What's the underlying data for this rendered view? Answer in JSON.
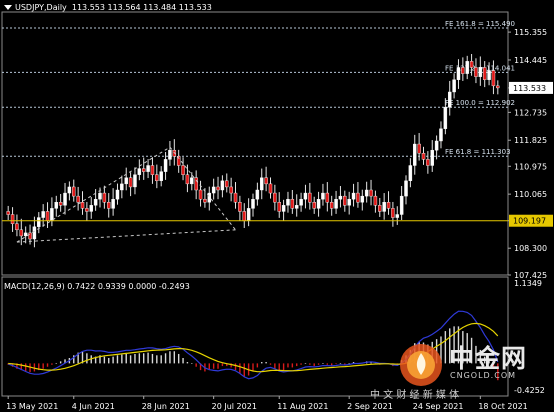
{
  "window": {
    "symbol_tf": "USDJPY,Daily",
    "ohlc": "113.553 113.564 113.484 113.533",
    "menu_icon": "triangle-down-icon"
  },
  "macd": {
    "label": "MACD(12,26,9) 0.7422 0.9339 0.0000 -0.2493",
    "axis_top": "1.1349",
    "axis_bottom": "-0.4252",
    "signal_color": "#e6d400",
    "macd_line_color": "#2f3ad8",
    "histogram_color_up": "#d8d8d8",
    "histogram_color_down": "#d81b1b"
  },
  "watermark": {
    "brand_cn": "中金网",
    "brand_en": "CNGOLD.COM",
    "tagline": "中 文 财 经 新 媒 体",
    "logo_icon": "coin-flame-logo-icon"
  },
  "chart_data": [
    {
      "type": "candlestick",
      "title": "USDJPY,Daily",
      "y_ticks": [
        "115.355",
        "114.445",
        "113.533",
        "112.735",
        "111.825",
        "110.975",
        "110.065",
        "109.197",
        "108.300",
        "107.425"
      ],
      "ylim": [
        107.425,
        115.75
      ],
      "x_ticks": [
        "13 May 2021",
        "4 Jun 2021",
        "28 Jun 2021",
        "20 Jul 2021",
        "11 Aug 2021",
        "2 Sep 2021",
        "24 Sep 2021",
        "18 Oct 2021"
      ],
      "current_price": "113.533",
      "horizontal_line": {
        "value": 109.197,
        "label": "109.197",
        "color": "#e6c800"
      },
      "fibonacci_levels": [
        {
          "label": "FE 161.8 = 115.490",
          "value": 115.49
        },
        {
          "label": "FE 127.2 = 114.041",
          "value": 114.041
        },
        {
          "label": "FE 100.0 = 112.902",
          "value": 112.902
        },
        {
          "label": "FE 61.8 = 111.303",
          "value": 111.303
        }
      ],
      "closes": [
        109.4,
        109.1,
        108.9,
        108.7,
        108.8,
        108.6,
        109.0,
        109.3,
        109.5,
        109.2,
        109.6,
        109.8,
        109.7,
        110.1,
        110.3,
        110.0,
        109.8,
        109.6,
        109.5,
        109.7,
        109.9,
        110.1,
        109.8,
        109.6,
        109.9,
        110.2,
        110.4,
        110.6,
        110.3,
        110.7,
        110.9,
        110.8,
        111.0,
        110.7,
        110.5,
        110.8,
        111.2,
        111.5,
        111.3,
        111.0,
        110.7,
        110.4,
        110.6,
        110.2,
        109.9,
        109.8,
        110.1,
        110.3,
        110.2,
        110.5,
        110.3,
        110.1,
        109.8,
        109.5,
        109.2,
        109.6,
        109.9,
        110.2,
        110.6,
        110.4,
        110.1,
        109.8,
        109.5,
        109.7,
        109.9,
        109.6,
        109.7,
        109.9,
        110.1,
        109.8,
        109.6,
        109.9,
        110.1,
        109.8,
        109.6,
        109.9,
        110.0,
        109.7,
        109.9,
        110.1,
        109.8,
        110.0,
        110.2,
        110.0,
        109.7,
        109.5,
        109.8,
        109.6,
        109.3,
        109.4,
        110.0,
        110.5,
        111.0,
        111.7,
        111.4,
        111.2,
        111.0,
        111.5,
        111.8,
        112.2,
        112.9,
        113.4,
        113.8,
        114.2,
        114.0,
        114.4,
        114.2,
        113.9,
        114.2,
        113.8,
        114.1,
        113.6,
        113.533
      ],
      "series": [
        {
          "name": "FE 161.8",
          "values": [
            115.49
          ]
        },
        {
          "name": "FE 127.2",
          "values": [
            114.041
          ]
        },
        {
          "name": "FE 100.0",
          "values": [
            112.902
          ]
        },
        {
          "name": "FE 61.8",
          "values": [
            111.303
          ]
        }
      ]
    },
    {
      "type": "bar",
      "title": "MACD(12,26,9) 0.7422 0.9339 0.0000 -0.2493",
      "ylim": [
        -0.4252,
        1.1349
      ],
      "y_ticks": [
        "1.1349",
        "-0.4252"
      ],
      "histogram": [
        -0.02,
        -0.05,
        -0.08,
        -0.1,
        -0.12,
        -0.13,
        -0.12,
        -0.1,
        -0.08,
        -0.05,
        -0.02,
        0.0,
        0.03,
        0.06,
        0.08,
        0.12,
        0.16,
        0.17,
        0.15,
        0.12,
        0.1,
        0.12,
        0.1,
        0.08,
        0.1,
        0.12,
        0.13,
        0.14,
        0.12,
        0.14,
        0.15,
        0.15,
        0.16,
        0.14,
        0.12,
        0.12,
        0.15,
        0.18,
        0.18,
        0.14,
        0.08,
        0.02,
        0.0,
        -0.05,
        -0.1,
        -0.12,
        -0.1,
        -0.08,
        -0.08,
        -0.04,
        -0.04,
        -0.06,
        -0.1,
        -0.15,
        -0.2,
        -0.18,
        -0.12,
        -0.06,
        0.02,
        0.02,
        -0.02,
        -0.08,
        -0.12,
        -0.1,
        -0.06,
        -0.06,
        -0.04,
        -0.02,
        0.0,
        -0.02,
        -0.04,
        -0.02,
        0.0,
        -0.02,
        -0.03,
        -0.01,
        0.0,
        -0.02,
        0.0,
        0.02,
        0.0,
        0.01,
        0.03,
        0.02,
        0.0,
        -0.02,
        0.0,
        -0.01,
        -0.04,
        -0.03,
        0.05,
        0.12,
        0.2,
        0.3,
        0.32,
        0.31,
        0.28,
        0.32,
        0.36,
        0.4,
        0.48,
        0.52,
        0.55,
        0.55,
        0.48,
        0.45,
        0.38,
        0.26,
        0.2,
        0.1,
        0.06,
        -0.05,
        -0.25
      ]
    }
  ]
}
